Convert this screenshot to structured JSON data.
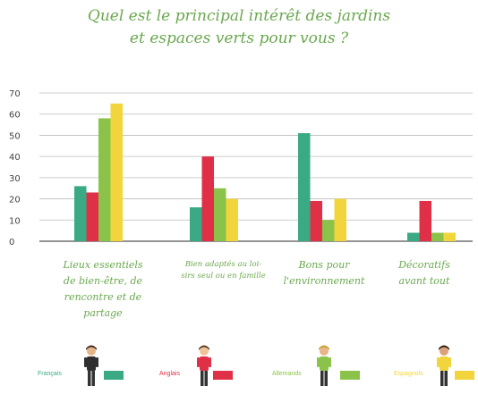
{
  "title_line1": "Quel est le principal intérêt des jardins",
  "title_line2": "et espaces verts pour vous ?",
  "chart_data": {
    "type": "bar",
    "categories": [
      "Lieux essentiels\nde bien-être, de\nrencontre et de\npartage",
      "Bien adaptés au loi-\nsirs seul ou en famille",
      "Bons pour\nl'environnement",
      "Décoratifs\navant tout"
    ],
    "series": [
      {
        "name": "Français",
        "color": "#3aaa85",
        "values": [
          26,
          16,
          51,
          4
        ]
      },
      {
        "name": "Anglais",
        "color": "#e03047",
        "values": [
          23,
          40,
          19,
          19
        ]
      },
      {
        "name": "Allemands",
        "color": "#8bc34a",
        "values": [
          58,
          25,
          10,
          4
        ]
      },
      {
        "name": "Espagnols",
        "color": "#f2d53c",
        "values": [
          65,
          20,
          20,
          4
        ]
      }
    ],
    "yticks": [
      "0",
      "10",
      "20",
      "30",
      "40",
      "50",
      "60",
      "70"
    ],
    "ylim": [
      0,
      70
    ],
    "grid": true,
    "legend_position": "bottom"
  }
}
